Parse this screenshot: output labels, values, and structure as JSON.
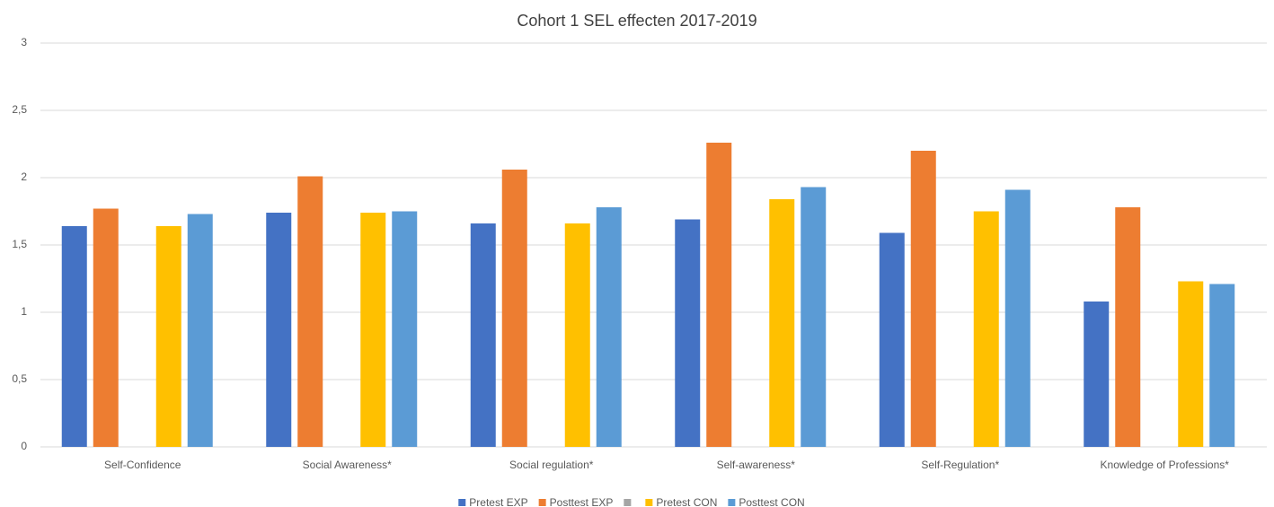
{
  "chart_data": {
    "type": "bar",
    "title": "Cohort 1 SEL effecten 2017-2019",
    "categories": [
      "Self-Confidence",
      "Social Awareness*",
      "Social regulation*",
      "Self-awareness*",
      "Self-Regulation*",
      "Knowledge of Professions*"
    ],
    "series": [
      {
        "name": "Pretest EXP",
        "color": "#4472c4",
        "values": [
          1.64,
          1.74,
          1.66,
          1.69,
          1.59,
          1.08
        ]
      },
      {
        "name": "Posttest EXP",
        "color": "#ed7d31",
        "values": [
          1.77,
          2.01,
          2.06,
          2.26,
          2.2,
          1.78
        ]
      },
      {
        "color": "#a5a5a5",
        "values": [
          null,
          null,
          null,
          null,
          null,
          null
        ]
      },
      {
        "name": "Pretest CON",
        "color": "#ffc000",
        "values": [
          1.64,
          1.74,
          1.66,
          1.84,
          1.75,
          1.23
        ]
      },
      {
        "name": "Posttest CON",
        "color": "#5b9bd5",
        "values": [
          1.73,
          1.75,
          1.78,
          1.93,
          1.91,
          1.21
        ]
      }
    ],
    "ylim": [
      0,
      3
    ],
    "yticks": [
      0,
      {
        "value": 0.5,
        "label": "0,5"
      },
      1,
      {
        "value": 1.5,
        "label": "1,5"
      },
      2,
      {
        "value": 2.5,
        "label": "2,5"
      },
      3
    ],
    "grid": true,
    "legend": "bottom"
  }
}
